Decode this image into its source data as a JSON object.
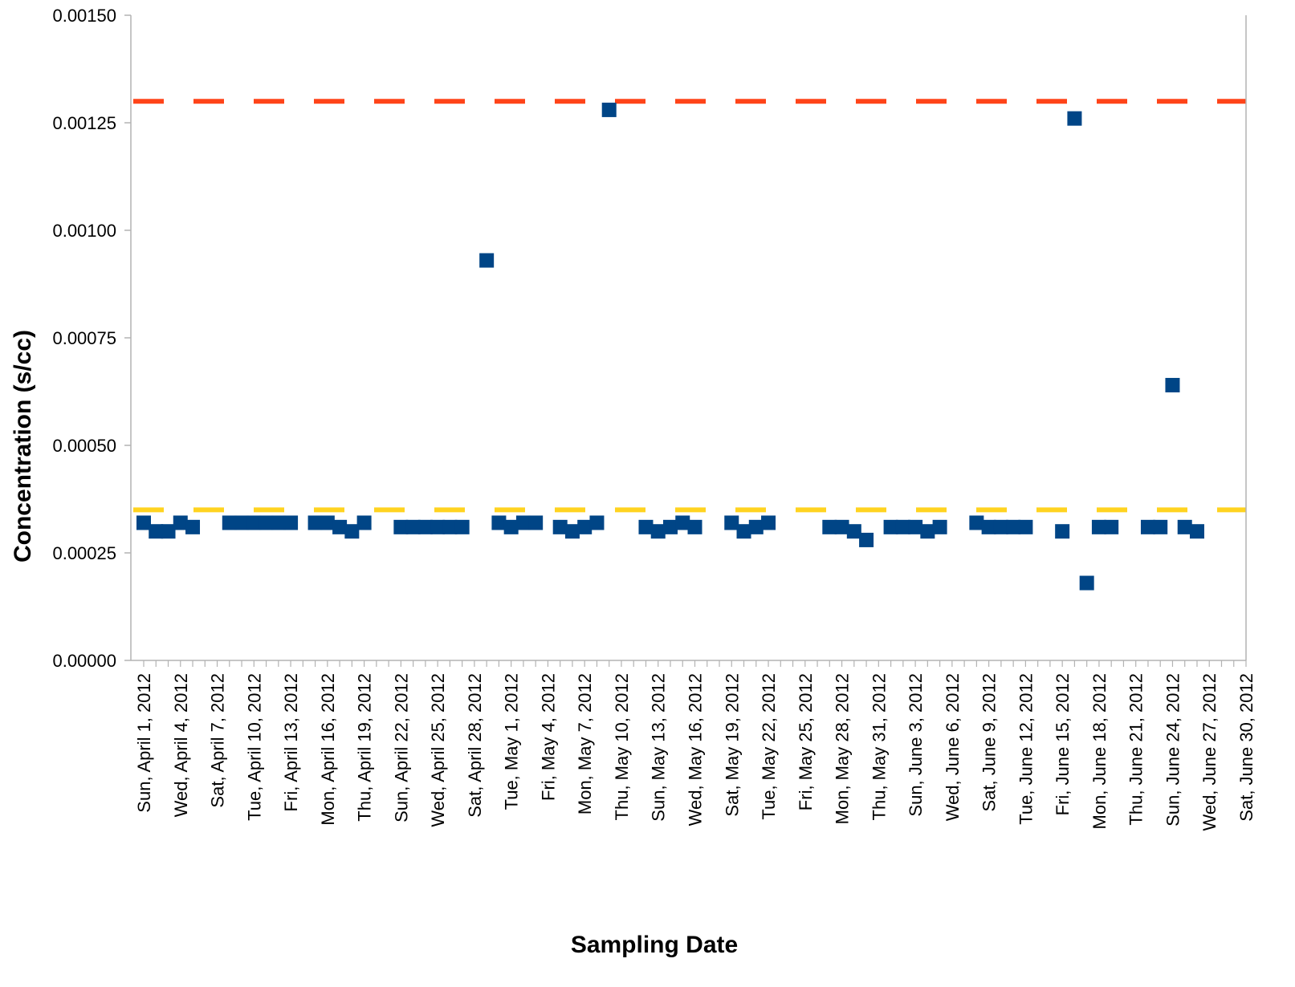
{
  "chart_data": {
    "type": "scatter",
    "xlabel": "Sampling Date",
    "ylabel": "Concentration (s/cc)",
    "ylim": [
      0,
      0.0015
    ],
    "yticks": [
      "0.00000",
      "0.00025",
      "0.00050",
      "0.00075",
      "0.00100",
      "0.00125",
      "0.00150"
    ],
    "x_range": [
      "2012-04-01",
      "2012-06-30"
    ],
    "xticks": [
      {
        "date": "2012-04-01",
        "label": "Sun, April 1, 2012"
      },
      {
        "date": "2012-04-04",
        "label": "Wed, April 4, 2012"
      },
      {
        "date": "2012-04-07",
        "label": "Sat, April 7, 2012"
      },
      {
        "date": "2012-04-10",
        "label": "Tue, April 10, 2012"
      },
      {
        "date": "2012-04-13",
        "label": "Fri, April 13, 2012"
      },
      {
        "date": "2012-04-16",
        "label": "Mon, April 16, 2012"
      },
      {
        "date": "2012-04-19",
        "label": "Thu, April 19, 2012"
      },
      {
        "date": "2012-04-22",
        "label": "Sun, April 22, 2012"
      },
      {
        "date": "2012-04-25",
        "label": "Wed, April 25, 2012"
      },
      {
        "date": "2012-04-28",
        "label": "Sat, April 28, 2012"
      },
      {
        "date": "2012-05-01",
        "label": "Tue, May 1, 2012"
      },
      {
        "date": "2012-05-04",
        "label": "Fri, May 4, 2012"
      },
      {
        "date": "2012-05-07",
        "label": "Mon, May 7, 2012"
      },
      {
        "date": "2012-05-10",
        "label": "Thu, May 10, 2012"
      },
      {
        "date": "2012-05-13",
        "label": "Sun, May 13, 2012"
      },
      {
        "date": "2012-05-16",
        "label": "Wed, May 16, 2012"
      },
      {
        "date": "2012-05-19",
        "label": "Sat, May 19, 2012"
      },
      {
        "date": "2012-05-22",
        "label": "Tue, May 22, 2012"
      },
      {
        "date": "2012-05-25",
        "label": "Fri, May 25, 2012"
      },
      {
        "date": "2012-05-28",
        "label": "Mon, May 28, 2012"
      },
      {
        "date": "2012-05-31",
        "label": "Thu, May 31, 2012"
      },
      {
        "date": "2012-06-03",
        "label": "Sun, June 3, 2012"
      },
      {
        "date": "2012-06-06",
        "label": "Wed, June 6, 2012"
      },
      {
        "date": "2012-06-09",
        "label": "Sat, June 9, 2012"
      },
      {
        "date": "2012-06-12",
        "label": "Tue, June 12, 2012"
      },
      {
        "date": "2012-06-15",
        "label": "Fri, June 15, 2012"
      },
      {
        "date": "2012-06-18",
        "label": "Mon, June 18, 2012"
      },
      {
        "date": "2012-06-21",
        "label": "Thu, June 21, 2012"
      },
      {
        "date": "2012-06-24",
        "label": "Sun, June 24, 2012"
      },
      {
        "date": "2012-06-27",
        "label": "Wed, June 27, 2012"
      },
      {
        "date": "2012-06-30",
        "label": "Sat, June 30, 2012"
      }
    ],
    "grid": false,
    "reference_lines": [
      {
        "y": 0.0013,
        "color": "#ff4419",
        "style": "dashed"
      },
      {
        "y": 0.00035,
        "color": "#ffd320",
        "style": "dashed"
      }
    ],
    "marker_color": "#004586",
    "points": [
      [
        "2012-04-01",
        0.00032
      ],
      [
        "2012-04-02",
        0.0003
      ],
      [
        "2012-04-03",
        0.0003
      ],
      [
        "2012-04-04",
        0.00032
      ],
      [
        "2012-04-05",
        0.00031
      ],
      [
        "2012-04-08",
        0.00032
      ],
      [
        "2012-04-09",
        0.00032
      ],
      [
        "2012-04-10",
        0.00032
      ],
      [
        "2012-04-11",
        0.00032
      ],
      [
        "2012-04-12",
        0.00032
      ],
      [
        "2012-04-13",
        0.00032
      ],
      [
        "2012-04-15",
        0.00032
      ],
      [
        "2012-04-16",
        0.00032
      ],
      [
        "2012-04-17",
        0.00031
      ],
      [
        "2012-04-18",
        0.0003
      ],
      [
        "2012-04-19",
        0.00032
      ],
      [
        "2012-04-22",
        0.00031
      ],
      [
        "2012-04-23",
        0.00031
      ],
      [
        "2012-04-24",
        0.00031
      ],
      [
        "2012-04-25",
        0.00031
      ],
      [
        "2012-04-26",
        0.00031
      ],
      [
        "2012-04-27",
        0.00031
      ],
      [
        "2012-04-29",
        0.00093
      ],
      [
        "2012-04-30",
        0.00032
      ],
      [
        "2012-05-01",
        0.00031
      ],
      [
        "2012-05-02",
        0.00032
      ],
      [
        "2012-05-03",
        0.00032
      ],
      [
        "2012-05-05",
        0.00031
      ],
      [
        "2012-05-06",
        0.0003
      ],
      [
        "2012-05-07",
        0.00031
      ],
      [
        "2012-05-08",
        0.00032
      ],
      [
        "2012-05-09",
        0.00128
      ],
      [
        "2012-05-12",
        0.00031
      ],
      [
        "2012-05-13",
        0.0003
      ],
      [
        "2012-05-14",
        0.00031
      ],
      [
        "2012-05-15",
        0.00032
      ],
      [
        "2012-05-16",
        0.00031
      ],
      [
        "2012-05-19",
        0.00032
      ],
      [
        "2012-05-20",
        0.0003
      ],
      [
        "2012-05-21",
        0.00031
      ],
      [
        "2012-05-22",
        0.00032
      ],
      [
        "2012-05-27",
        0.00031
      ],
      [
        "2012-05-28",
        0.00031
      ],
      [
        "2012-05-29",
        0.0003
      ],
      [
        "2012-05-30",
        0.00028
      ],
      [
        "2012-06-01",
        0.00031
      ],
      [
        "2012-06-02",
        0.00031
      ],
      [
        "2012-06-03",
        0.00031
      ],
      [
        "2012-06-04",
        0.0003
      ],
      [
        "2012-06-05",
        0.00031
      ],
      [
        "2012-06-08",
        0.00032
      ],
      [
        "2012-06-09",
        0.00031
      ],
      [
        "2012-06-10",
        0.00031
      ],
      [
        "2012-06-11",
        0.00031
      ],
      [
        "2012-06-12",
        0.00031
      ],
      [
        "2012-06-15",
        0.0003
      ],
      [
        "2012-06-16",
        0.00126
      ],
      [
        "2012-06-17",
        0.00018
      ],
      [
        "2012-06-18",
        0.00031
      ],
      [
        "2012-06-19",
        0.00031
      ],
      [
        "2012-06-22",
        0.00031
      ],
      [
        "2012-06-23",
        0.00031
      ],
      [
        "2012-06-24",
        0.00064
      ],
      [
        "2012-06-25",
        0.00031
      ],
      [
        "2012-06-26",
        0.0003
      ]
    ]
  }
}
